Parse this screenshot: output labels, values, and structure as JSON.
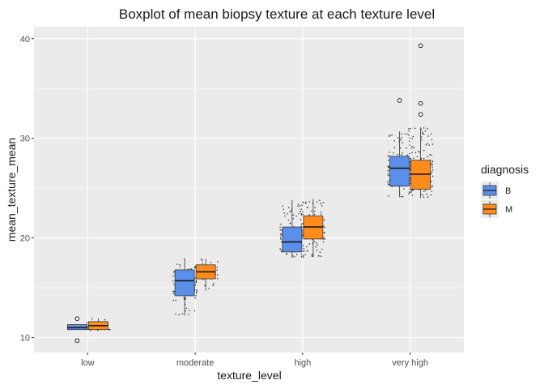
{
  "chart_data": {
    "type": "boxplot",
    "title": "Boxplot of mean biopsy texture at each texture level",
    "xlabel": "texture_level",
    "ylabel": "mean_texture_mean",
    "categories": [
      "low",
      "moderate",
      "high",
      "very high"
    ],
    "yticks": [
      10,
      20,
      30,
      40
    ],
    "ylim": [
      8.5,
      41.2
    ],
    "grid": true,
    "legend": {
      "title": "diagnosis",
      "position": "right"
    },
    "colors": {
      "B": "#5b8fea",
      "M": "#ff8c1a",
      "panel": "#ebebeb",
      "grid": "#ffffff"
    },
    "series": [
      {
        "name": "B",
        "boxes": [
          {
            "category": "low",
            "min": 10.8,
            "q1": 10.8,
            "median": 11.0,
            "q3": 11.3,
            "max": 11.3,
            "outliers": [
              9.7,
              11.9
            ]
          },
          {
            "category": "moderate",
            "min": 12.2,
            "q1": 14.2,
            "median": 15.7,
            "q3": 16.8,
            "max": 17.9,
            "outliers": []
          },
          {
            "category": "high",
            "min": 18.0,
            "q1": 18.6,
            "median": 19.6,
            "q3": 21.1,
            "max": 23.8,
            "outliers": []
          },
          {
            "category": "very high",
            "min": 24.1,
            "q1": 25.2,
            "median": 27.0,
            "q3": 28.2,
            "max": 30.7,
            "outliers": [
              33.8
            ]
          }
        ]
      },
      {
        "name": "M",
        "boxes": [
          {
            "category": "low",
            "min": 10.7,
            "q1": 10.8,
            "median": 11.2,
            "q3": 11.6,
            "max": 11.9,
            "outliers": []
          },
          {
            "category": "moderate",
            "min": 14.7,
            "q1": 15.9,
            "median": 16.6,
            "q3": 17.3,
            "max": 17.9,
            "outliers": []
          },
          {
            "category": "high",
            "min": 18.1,
            "q1": 19.9,
            "median": 21.1,
            "q3": 22.2,
            "max": 23.9,
            "outliers": []
          },
          {
            "category": "very high",
            "min": 24.0,
            "q1": 24.9,
            "median": 26.4,
            "q3": 27.8,
            "max": 31.1,
            "outliers": [
              32.4,
              33.5,
              39.3
            ]
          }
        ]
      }
    ]
  }
}
